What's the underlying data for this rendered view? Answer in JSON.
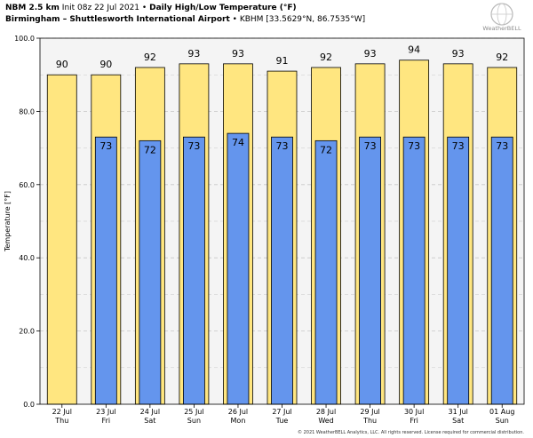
{
  "header": {
    "model": "NBM 2.5 km",
    "init": "Init 08z 22 Jul 2021",
    "product": "Daily High/Low Temperature (°F)",
    "location": "Birmingham – Shuttlesworth International Airport",
    "station": "KBHM [33.5629°N, 86.7535°W]",
    "bullet": "•"
  },
  "logo": {
    "text": "WeatherBELL",
    "icon": "globe-logo-icon"
  },
  "copyright": "© 2021 WeatherBELL Analytics, LLC. All rights reserved. License required for commercial distribution.",
  "colors": {
    "high_fill": "#ffe680",
    "low_fill": "#6495ed",
    "plot_bg": "#f4f4f4",
    "grid": "#c8c8c8"
  },
  "chart_data": {
    "type": "bar",
    "ylabel": "Temperature [°F]",
    "ylim": [
      0,
      100
    ],
    "yticks": [
      "0.0",
      "20.0",
      "40.0",
      "60.0",
      "80.0",
      "100.0"
    ],
    "categories": [
      "22 Jul",
      "23 Jul",
      "24 Jul",
      "25 Jul",
      "26 Jul",
      "27 Jul",
      "28 Jul",
      "29 Jul",
      "30 Jul",
      "31 Jul",
      "01 Aug"
    ],
    "weekdays": [
      "Thu",
      "Fri",
      "Sat",
      "Sun",
      "Mon",
      "Tue",
      "Wed",
      "Thu",
      "Fri",
      "Sat",
      "Sun"
    ],
    "grid": true,
    "series": [
      {
        "values": [
          90,
          90,
          92,
          93,
          93,
          91,
          92,
          93,
          94,
          93,
          92
        ],
        "labels": [
          "90",
          "90",
          "92",
          "93",
          "93",
          "91",
          "92",
          "93",
          "94",
          "93",
          "92"
        ]
      },
      {
        "values": [
          null,
          73,
          72,
          73,
          74,
          73,
          72,
          73,
          73,
          73,
          73
        ],
        "labels": [
          "",
          "73",
          "72",
          "73",
          "74",
          "73",
          "72",
          "73",
          "73",
          "73",
          "73"
        ]
      }
    ]
  }
}
